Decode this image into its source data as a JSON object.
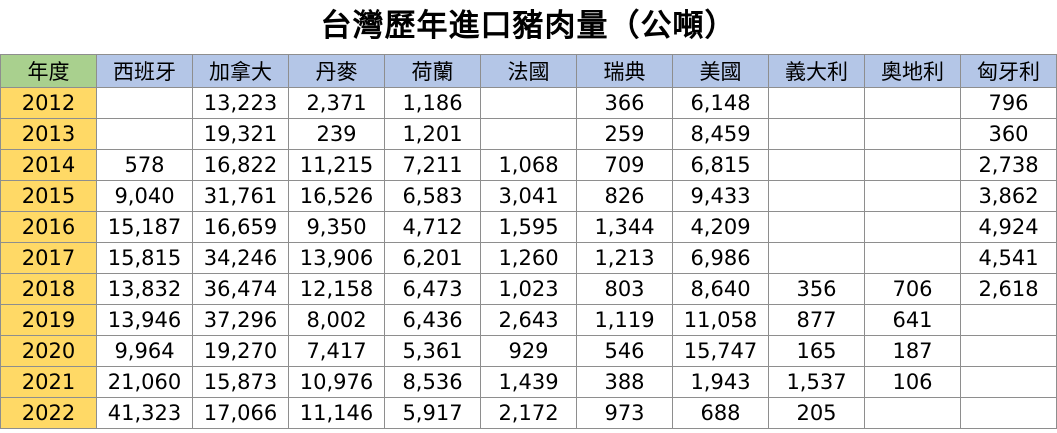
{
  "title": "台灣歷年進口豬肉量（公噸）",
  "table": {
    "header": [
      "年度",
      "西班牙",
      "加拿大",
      "丹麥",
      "荷蘭",
      "法國",
      "瑞典",
      "美國",
      "義大利",
      "奧地利",
      "匈牙利"
    ],
    "rows": [
      [
        "2012",
        null,
        "13,223",
        "2,371",
        "1,186",
        null,
        "366",
        "6,148",
        null,
        null,
        "796"
      ],
      [
        "2013",
        null,
        "19,321",
        "239",
        "1,201",
        null,
        "259",
        "8,459",
        null,
        null,
        "360"
      ],
      [
        "2014",
        "578",
        "16,822",
        "11,215",
        "7,211",
        "1,068",
        "709",
        "6,815",
        null,
        null,
        "2,738"
      ],
      [
        "2015",
        "9,040",
        "31,761",
        "16,526",
        "6,583",
        "3,041",
        "826",
        "9,433",
        null,
        null,
        "3,862"
      ],
      [
        "2016",
        "15,187",
        "16,659",
        "9,350",
        "4,712",
        "1,595",
        "1,344",
        "4,209",
        null,
        null,
        "4,924"
      ],
      [
        "2017",
        "15,815",
        "34,246",
        "13,906",
        "6,201",
        "1,260",
        "1,213",
        "6,986",
        null,
        null,
        "4,541"
      ],
      [
        "2018",
        "13,832",
        "36,474",
        "12,158",
        "6,473",
        "1,023",
        "803",
        "8,640",
        "356",
        "706",
        "2,618"
      ],
      [
        "2019",
        "13,946",
        "37,296",
        "8,002",
        "6,436",
        "2,643",
        "1,119",
        "11,058",
        "877",
        "641",
        null
      ],
      [
        "2020",
        "9,964",
        "19,270",
        "7,417",
        "5,361",
        "929",
        "546",
        "15,747",
        "165",
        "187",
        null
      ],
      [
        "2021",
        "21,060",
        "15,873",
        "10,976",
        "8,536",
        "1,439",
        "388",
        "1,943",
        "1,537",
        "106",
        null
      ],
      [
        "2022",
        "41,323",
        "17,066",
        "11,146",
        "5,917",
        "2,172",
        "973",
        "688",
        "205",
        null,
        null
      ]
    ]
  }
}
